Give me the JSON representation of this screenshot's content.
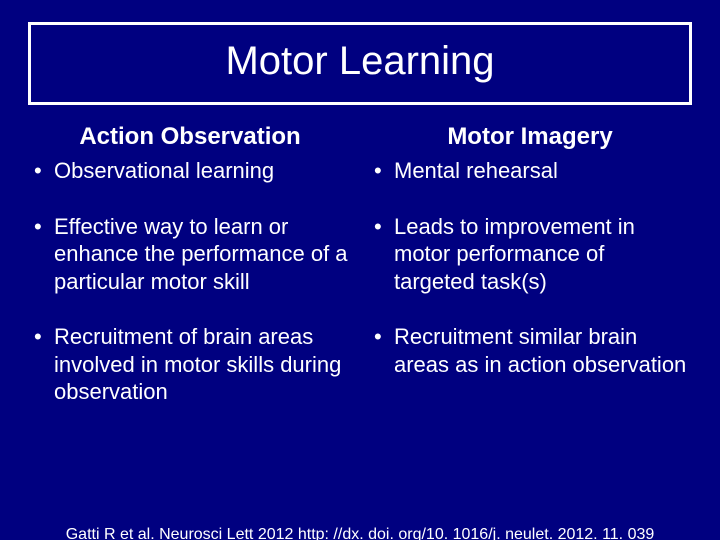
{
  "slide": {
    "title": "Motor Learning",
    "background_color": "#000080",
    "text_color": "#ffffff",
    "title_border_color": "#ffffff",
    "title_fontsize": 40,
    "heading_fontsize": 24,
    "bullet_fontsize": 22,
    "citation_fontsize": 16
  },
  "left": {
    "heading": "Action Observation",
    "bullets": [
      "Observational learning",
      "Effective way to learn or enhance the performance of a particular motor skill",
      "Recruitment of brain areas involved in motor skills during observation"
    ]
  },
  "right": {
    "heading": "Motor Imagery",
    "bullets": [
      "Mental rehearsal",
      "Leads to improvement in motor performance of targeted task(s)",
      "Recruitment similar brain areas as in action observation"
    ]
  },
  "citation": "Gatti R et al. Neurosci Lett 2012 http: //dx. doi. org/10. 1016/j. neulet. 2012. 11. 039"
}
